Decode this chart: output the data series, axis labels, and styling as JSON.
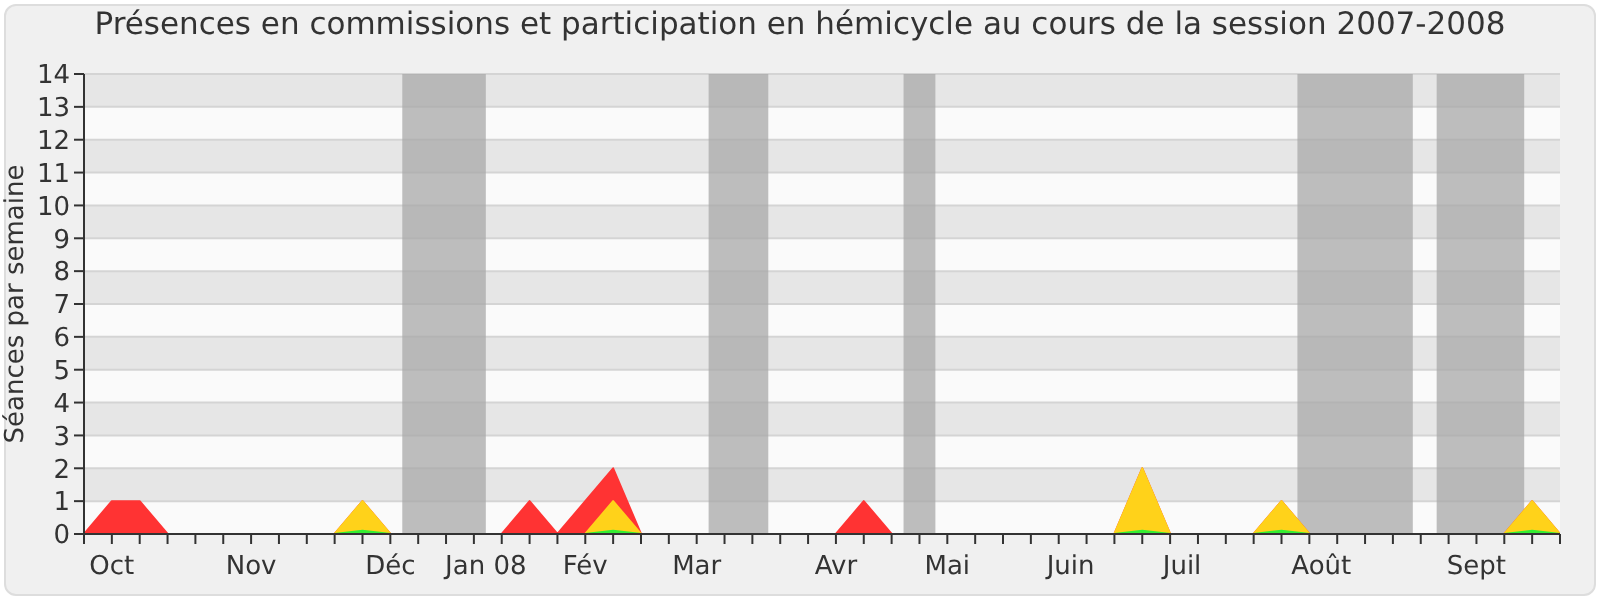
{
  "chart_data": {
    "type": "area",
    "title": "Présences en commissions et participation en hémicycle au cours de la session 2007-2008",
    "ylabel": "Séances par semaine",
    "x": [
      "2007-10-01",
      "2007-10-08",
      "2007-10-15",
      "2007-10-22",
      "2007-10-29",
      "2007-11-05",
      "2007-11-12",
      "2007-11-19",
      "2007-11-26",
      "2007-12-03",
      "2007-12-10",
      "2007-12-17",
      "2007-12-24",
      "2007-12-31",
      "2008-01-07",
      "2008-01-14",
      "2008-01-21",
      "2008-01-28",
      "2008-02-04",
      "2008-02-11",
      "2008-02-18",
      "2008-02-25",
      "2008-03-03",
      "2008-03-10",
      "2008-03-17",
      "2008-03-24",
      "2008-03-31",
      "2008-04-07",
      "2008-04-14",
      "2008-04-21",
      "2008-04-28",
      "2008-05-05",
      "2008-05-12",
      "2008-05-19",
      "2008-05-26",
      "2008-06-02",
      "2008-06-09",
      "2008-06-16",
      "2008-06-23",
      "2008-06-30",
      "2008-07-07",
      "2008-07-14",
      "2008-07-21",
      "2008-07-28",
      "2008-08-04",
      "2008-08-11",
      "2008-08-18",
      "2008-08-25",
      "2008-09-01",
      "2008-09-08",
      "2008-09-15",
      "2008-09-22",
      "2008-09-29",
      "2008-10-06"
    ],
    "series": [
      {
        "color": "#ff3333",
        "values": [
          0,
          1,
          1,
          0,
          0,
          0,
          0,
          0,
          0,
          0,
          1,
          0,
          0,
          0,
          0,
          0,
          1,
          0,
          1,
          2,
          0,
          0,
          0,
          0,
          0,
          0,
          0,
          0,
          1,
          0,
          0,
          0,
          0,
          0,
          0,
          0,
          0,
          0,
          2,
          0,
          0,
          0,
          0,
          1,
          0,
          0,
          0,
          0,
          0,
          0,
          0,
          0,
          1,
          0
        ]
      },
      {
        "color": "#ffd21a",
        "values": [
          null,
          null,
          null,
          null,
          null,
          null,
          null,
          null,
          null,
          0,
          1,
          0,
          null,
          null,
          null,
          null,
          null,
          null,
          0,
          1,
          0,
          null,
          null,
          null,
          null,
          null,
          null,
          null,
          null,
          null,
          null,
          null,
          null,
          null,
          null,
          null,
          null,
          0,
          2,
          0,
          null,
          null,
          0,
          1,
          0,
          null,
          null,
          null,
          null,
          null,
          null,
          0,
          1,
          0
        ]
      },
      {
        "color": "#33ee33",
        "values": [
          null,
          null,
          null,
          null,
          null,
          null,
          null,
          null,
          null,
          0,
          0.1,
          0,
          null,
          null,
          null,
          null,
          null,
          null,
          0,
          0.1,
          0,
          null,
          null,
          null,
          null,
          null,
          null,
          null,
          null,
          null,
          null,
          null,
          null,
          null,
          null,
          null,
          null,
          0,
          0.1,
          0,
          null,
          null,
          0,
          0.1,
          0,
          null,
          null,
          null,
          null,
          null,
          null,
          0,
          0.1,
          0
        ]
      }
    ],
    "xlim": [
      "2007-10-01",
      "2008-10-06"
    ],
    "xticks": [
      {
        "value": "2007-10-01",
        "label": null
      },
      {
        "value": "2007-10-08",
        "label": null
      },
      {
        "value": "2007-10-15",
        "label": null
      },
      {
        "value": "2007-10-22",
        "label": null
      },
      {
        "value": "2007-10-29",
        "label": null
      },
      {
        "value": "2007-11-05",
        "label": null
      },
      {
        "value": "2007-11-12",
        "label": null
      },
      {
        "value": "2007-11-19",
        "label": null
      },
      {
        "value": "2007-11-26",
        "label": null
      },
      {
        "value": "2007-12-03",
        "label": null
      },
      {
        "value": "2007-12-10",
        "label": null
      },
      {
        "value": "2007-12-17",
        "label": null
      },
      {
        "value": "2007-12-24",
        "label": null
      },
      {
        "value": "2007-12-31",
        "label": null
      },
      {
        "value": "2008-01-07",
        "label": null
      },
      {
        "value": "2008-01-14",
        "label": null
      },
      {
        "value": "2008-01-21",
        "label": null
      },
      {
        "value": "2008-01-28",
        "label": null
      },
      {
        "value": "2008-02-04",
        "label": null
      },
      {
        "value": "2008-02-11",
        "label": null
      },
      {
        "value": "2008-02-18",
        "label": null
      },
      {
        "value": "2008-02-25",
        "label": null
      },
      {
        "value": "2008-03-03",
        "label": null
      },
      {
        "value": "2008-03-10",
        "label": null
      },
      {
        "value": "2008-03-17",
        "label": null
      },
      {
        "value": "2008-03-24",
        "label": null
      },
      {
        "value": "2008-03-31",
        "label": null
      },
      {
        "value": "2008-04-07",
        "label": null
      },
      {
        "value": "2008-04-14",
        "label": null
      },
      {
        "value": "2008-04-21",
        "label": null
      },
      {
        "value": "2008-04-28",
        "label": null
      },
      {
        "value": "2008-05-05",
        "label": null
      },
      {
        "value": "2008-05-12",
        "label": null
      },
      {
        "value": "2008-05-19",
        "label": null
      },
      {
        "value": "2008-05-26",
        "label": null
      },
      {
        "value": "2008-06-02",
        "label": null
      },
      {
        "value": "2008-06-09",
        "label": null
      },
      {
        "value": "2008-06-16",
        "label": null
      },
      {
        "value": "2008-06-23",
        "label": null
      },
      {
        "value": "2008-06-30",
        "label": null
      },
      {
        "value": "2008-07-07",
        "label": null
      },
      {
        "value": "2008-07-14",
        "label": null
      },
      {
        "value": "2008-07-21",
        "label": null
      },
      {
        "value": "2008-07-28",
        "label": null
      },
      {
        "value": "2008-08-04",
        "label": null
      },
      {
        "value": "2008-08-11",
        "label": null
      },
      {
        "value": "2008-08-18",
        "label": null
      },
      {
        "value": "2008-08-25",
        "label": null
      },
      {
        "value": "2008-09-01",
        "label": null
      },
      {
        "value": "2008-09-08",
        "label": null
      },
      {
        "value": "2008-09-15",
        "label": null
      },
      {
        "value": "2008-09-22",
        "label": null
      },
      {
        "value": "2008-09-29",
        "label": null
      },
      {
        "value": "2008-10-06",
        "label": null
      },
      {
        "value": "2007-10-08",
        "label": "Oct"
      },
      {
        "value": "2007-11-12",
        "label": "Nov"
      },
      {
        "value": "2007-12-17",
        "label": "Déc"
      },
      {
        "value": "2008-01-10",
        "label": "Jan 08"
      },
      {
        "value": "2008-02-04",
        "label": "Fév"
      },
      {
        "value": "2008-03-03",
        "label": "Mar"
      },
      {
        "value": "2008-04-07",
        "label": "Avr"
      },
      {
        "value": "2008-05-05",
        "label": "Mai"
      },
      {
        "value": "2008-06-05",
        "label": "Juin"
      },
      {
        "value": "2008-07-03",
        "label": "Juil"
      },
      {
        "value": "2008-08-07",
        "label": "Août"
      },
      {
        "value": "2008-09-15",
        "label": "Sept"
      }
    ],
    "ylim": [
      0,
      14
    ],
    "yticks": [
      0,
      1,
      2,
      3,
      4,
      5,
      6,
      7,
      8,
      9,
      10,
      11,
      12,
      13,
      14
    ],
    "grid": "y",
    "bands": [
      {
        "axis": "x",
        "from": "2007-12-20",
        "to": "2008-01-10",
        "color": "#a8a8a8"
      },
      {
        "axis": "x",
        "from": "2008-03-06",
        "to": "2008-03-21",
        "color": "#a8a8a8"
      },
      {
        "axis": "x",
        "from": "2008-04-24",
        "to": "2008-05-02",
        "color": "#a8a8a8"
      },
      {
        "axis": "x",
        "from": "2008-08-01",
        "to": "2008-08-30",
        "color": "#a8a8a8"
      },
      {
        "axis": "x",
        "from": "2008-09-05",
        "to": "2008-09-27",
        "color": "#a8a8a8"
      }
    ]
  }
}
